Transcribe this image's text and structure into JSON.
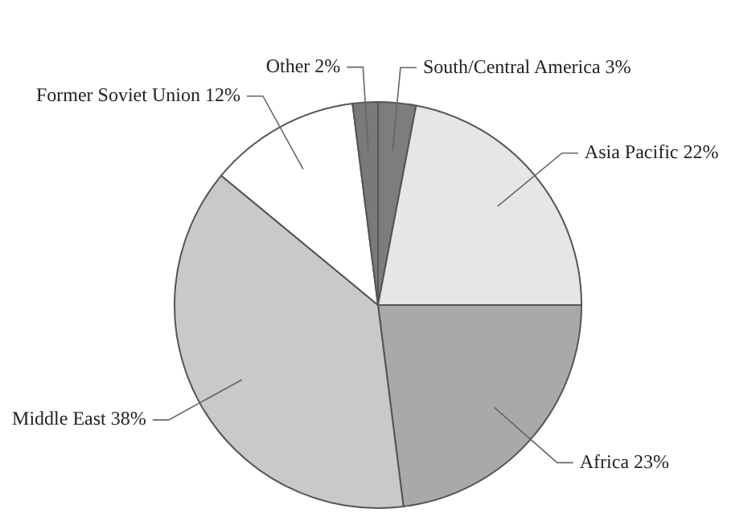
{
  "chart_data": {
    "type": "pie",
    "categories": [
      "South/Central America",
      "Asia Pacific",
      "Africa",
      "Middle East",
      "Former Soviet Union",
      "Other"
    ],
    "values": [
      3,
      22,
      23,
      38,
      12,
      2
    ],
    "value_labels": [
      "3%",
      "22%",
      "23%",
      "38%",
      "12%",
      "2%"
    ],
    "colors": [
      "#7d7d7d",
      "#e6e6e6",
      "#a9a9a9",
      "#c9c9c9",
      "#ffffff",
      "#7a7a7a"
    ],
    "legend": false
  }
}
